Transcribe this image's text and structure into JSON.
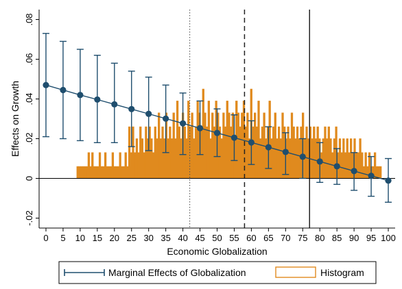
{
  "chart_data": {
    "type": "line",
    "xlabel": "Economic Globalization",
    "ylabel": "Effects on Growth",
    "xlim": [
      -2,
      102
    ],
    "ylim": [
      -0.025,
      0.085
    ],
    "x_ticks": [
      "0",
      "5",
      "10",
      "15",
      "20",
      "25",
      "30",
      "35",
      "40",
      "45",
      "50",
      "55",
      "60",
      "65",
      "70",
      "75",
      "80",
      "85",
      "90",
      "95",
      "100"
    ],
    "y_ticks": [
      {
        "value": -0.02,
        "label": "-.02"
      },
      {
        "value": 0,
        "label": "0"
      },
      {
        "value": 0.02,
        "label": ".02"
      },
      {
        "value": 0.04,
        "label": ".04"
      },
      {
        "value": 0.06,
        "label": ".06"
      },
      {
        "value": 0.08,
        "label": ".08"
      }
    ],
    "reference_lines": [
      {
        "x": 42,
        "style": "dotted"
      },
      {
        "x": 58,
        "style": "dashed"
      },
      {
        "x": 77,
        "style": "solid"
      }
    ],
    "series": [
      {
        "name": "Marginal Effects of Globalization",
        "color": "#1f4e6e",
        "x": [
          0,
          5,
          10,
          15,
          20,
          25,
          30,
          35,
          40,
          45,
          50,
          55,
          60,
          65,
          70,
          75,
          80,
          85,
          90,
          95,
          100
        ],
        "y": [
          0.047,
          0.0445,
          0.042,
          0.0397,
          0.0373,
          0.0349,
          0.0325,
          0.0301,
          0.0277,
          0.0253,
          0.0229,
          0.0205,
          0.0181,
          0.0157,
          0.0133,
          0.0109,
          0.0085,
          0.0061,
          0.0037,
          0.0013,
          -0.0011
        ],
        "ci_low": [
          0.021,
          0.02,
          0.019,
          0.018,
          0.018,
          0.016,
          0.014,
          0.013,
          0.012,
          0.012,
          0.011,
          0.009,
          0.007,
          0.005,
          0.002,
          0.0,
          -0.002,
          -0.003,
          -0.006,
          -0.009,
          -0.012
        ],
        "ci_high": [
          0.073,
          0.069,
          0.065,
          0.062,
          0.058,
          0.054,
          0.051,
          0.047,
          0.043,
          0.039,
          0.035,
          0.032,
          0.029,
          0.026,
          0.023,
          0.02,
          0.018,
          0.015,
          0.013,
          0.011,
          0.01
        ]
      },
      {
        "name": "Histogram",
        "color": "#e08a1e",
        "type": "histogram",
        "x_range": [
          9,
          98
        ],
        "heights": [
          0.006,
          0.006,
          0.006,
          0.006,
          0.006,
          0.006,
          0.013,
          0.006,
          0.013,
          0.006,
          0.006,
          0.006,
          0.013,
          0.006,
          0.006,
          0.013,
          0.006,
          0.006,
          0.006,
          0.013,
          0.006,
          0.006,
          0.006,
          0.013,
          0.006,
          0.006,
          0.013,
          0.006,
          0.026,
          0.013,
          0.026,
          0.013,
          0.02,
          0.013,
          0.026,
          0.02,
          0.013,
          0.026,
          0.02,
          0.026,
          0.02,
          0.013,
          0.026,
          0.02,
          0.033,
          0.02,
          0.026,
          0.02,
          0.033,
          0.02,
          0.026,
          0.02,
          0.033,
          0.02,
          0.039,
          0.026,
          0.02,
          0.033,
          0.026,
          0.02,
          0.039,
          0.026,
          0.033,
          0.02,
          0.026,
          0.039,
          0.033,
          0.026,
          0.045,
          0.033,
          0.026,
          0.039,
          0.02,
          0.033,
          0.026,
          0.039,
          0.033,
          0.026,
          0.02,
          0.033,
          0.026,
          0.039,
          0.033,
          0.026,
          0.033,
          0.02,
          0.039,
          0.033,
          0.026,
          0.033,
          0.039,
          0.026,
          0.033,
          0.02,
          0.045,
          0.026,
          0.033,
          0.026,
          0.039,
          0.02,
          0.026,
          0.033,
          0.02,
          0.026,
          0.039,
          0.02,
          0.026,
          0.033,
          0.02,
          0.026,
          0.02,
          0.033,
          0.026,
          0.02,
          0.026,
          0.02,
          0.033,
          0.026,
          0.02,
          0.026,
          0.02,
          0.026,
          0.033,
          0.02,
          0.026,
          0.02,
          0.026,
          0.02,
          0.026,
          0.02,
          0.026,
          0.02,
          0.013,
          0.02,
          0.026,
          0.02,
          0.026,
          0.02,
          0.013,
          0.02,
          0.026,
          0.013,
          0.02,
          0.013,
          0.02,
          0.013,
          0.02,
          0.013,
          0.02,
          0.013,
          0.02,
          0.013,
          0.013,
          0.02,
          0.013,
          0.006,
          0.013,
          0.006,
          0.013,
          0.006,
          0.006,
          0.013,
          0.006,
          0.006,
          0.006
        ]
      }
    ],
    "legend": {
      "placement": "bottom",
      "entries": [
        "Marginal Effects of Globalization",
        "Histogram"
      ]
    },
    "grid": false
  }
}
